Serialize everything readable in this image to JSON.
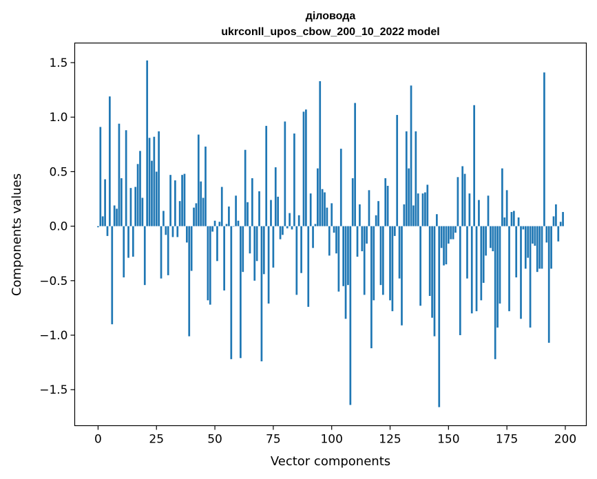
{
  "chart_data": {
    "type": "bar",
    "title_line1": "діловода",
    "title_line2": "ukrconll_upos_cbow_200_10_2022 model",
    "xlabel": "Vector components",
    "ylabel": "Components values",
    "xlim": [
      -10,
      209
    ],
    "ylim": [
      -1.83,
      1.68
    ],
    "x_ticks": [
      0,
      25,
      50,
      75,
      100,
      125,
      150,
      175,
      200
    ],
    "x_tick_labels": [
      "0",
      "25",
      "50",
      "75",
      "100",
      "125",
      "150",
      "175",
      "200"
    ],
    "y_ticks": [
      1.5,
      1.0,
      0.5,
      0.0,
      -0.5,
      -1.0,
      -1.5
    ],
    "y_tick_labels": [
      "1.5",
      "1.0",
      "0.5",
      "0.0",
      "−0.5",
      "−1.0",
      "−1.5"
    ],
    "bar_color": "#1f77b4",
    "values": [
      -0.01,
      0.91,
      0.09,
      0.43,
      -0.09,
      1.19,
      -0.9,
      0.19,
      0.16,
      0.94,
      0.44,
      -0.47,
      0.88,
      -0.29,
      0.35,
      -0.28,
      0.36,
      0.57,
      0.69,
      0.26,
      -0.54,
      1.52,
      0.81,
      0.6,
      0.82,
      0.5,
      0.87,
      -0.48,
      0.14,
      -0.08,
      -0.45,
      0.47,
      -0.1,
      0.42,
      -0.1,
      0.23,
      0.47,
      0.48,
      -0.15,
      -1.01,
      -0.41,
      0.17,
      0.21,
      0.84,
      0.41,
      0.26,
      0.73,
      -0.68,
      -0.72,
      -0.05,
      0.05,
      -0.32,
      0.04,
      0.36,
      -0.59,
      0.02,
      0.18,
      -1.22,
      0.0,
      0.28,
      0.05,
      -1.21,
      -0.42,
      0.7,
      0.22,
      -0.25,
      0.44,
      -0.5,
      -0.32,
      0.32,
      -1.24,
      -0.44,
      0.92,
      -0.71,
      0.24,
      -0.38,
      0.54,
      0.27,
      -0.12,
      -0.08,
      0.96,
      -0.02,
      0.12,
      -0.03,
      0.85,
      -0.63,
      0.1,
      -0.43,
      1.05,
      1.07,
      -0.74,
      0.3,
      -0.2,
      0.02,
      0.53,
      1.33,
      0.34,
      0.31,
      0.17,
      -0.27,
      0.21,
      -0.06,
      -0.25,
      -0.6,
      0.71,
      -0.55,
      -0.85,
      -0.54,
      -1.64,
      0.44,
      1.13,
      -0.28,
      0.2,
      -0.23,
      -0.63,
      -0.16,
      0.33,
      -1.12,
      -0.68,
      0.1,
      0.23,
      -0.54,
      -0.63,
      0.44,
      0.37,
      -0.68,
      -0.78,
      -0.09,
      1.02,
      -0.48,
      -0.91,
      0.2,
      0.87,
      0.53,
      1.29,
      0.19,
      0.87,
      0.3,
      -0.73,
      0.3,
      0.31,
      0.38,
      -0.64,
      -0.84,
      -1.01,
      0.11,
      -1.66,
      -0.2,
      -0.36,
      -0.35,
      -0.16,
      -0.12,
      -0.12,
      -0.06,
      0.45,
      -1.0,
      0.55,
      0.48,
      -0.48,
      0.3,
      -0.8,
      1.11,
      -0.78,
      0.24,
      -0.68,
      -0.52,
      -0.27,
      0.28,
      -0.2,
      -0.23,
      -1.22,
      -0.93,
      -0.71,
      0.53,
      0.08,
      0.33,
      -0.78,
      0.13,
      0.14,
      -0.47,
      0.08,
      -0.85,
      -0.03,
      -0.39,
      -0.29,
      -0.93,
      -0.16,
      -0.18,
      -0.42,
      -0.39,
      -0.39,
      1.41,
      -0.15,
      -1.07,
      -0.39,
      0.09,
      0.2,
      -0.14,
      0.04,
      0.13
    ]
  }
}
